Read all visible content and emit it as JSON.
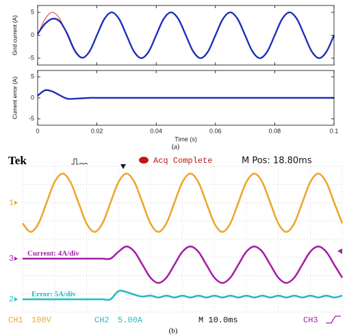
{
  "chart_data": [
    {
      "type": "line",
      "ylabel": "Grid current (A)",
      "x": [
        0,
        0.0025,
        0.005,
        0.0075,
        0.01,
        0.0125,
        0.015,
        0.0175,
        0.02,
        0.0225,
        0.025,
        0.0275,
        0.03,
        0.0325,
        0.035,
        0.0375,
        0.04,
        0.0425,
        0.045,
        0.0475,
        0.05,
        0.0525,
        0.055,
        0.0575,
        0.06,
        0.0625,
        0.065,
        0.0675,
        0.07,
        0.0725,
        0.075,
        0.0775,
        0.08,
        0.0825,
        0.085,
        0.0875,
        0.09,
        0.0925,
        0.095,
        0.0975,
        0.1
      ],
      "xlim": [
        0,
        0.1
      ],
      "xticks": [
        0,
        0.02,
        0.04,
        0.06,
        0.08,
        0.1
      ],
      "xticklabels": false,
      "ylim": [
        -6.5,
        6.5
      ],
      "yticks": [
        -5,
        0,
        5
      ],
      "series": [
        {
          "color": "#e03030",
          "width": 1,
          "values": [
            0,
            3.54,
            5,
            3.54,
            0,
            -3.54,
            -5,
            -3.54,
            0,
            3.54,
            5,
            3.54,
            0,
            -3.54,
            -5,
            -3.54,
            0,
            3.54,
            5,
            3.54,
            0,
            -3.54,
            -5,
            -3.54,
            0,
            3.54,
            5,
            3.54,
            0,
            -3.54,
            -5,
            -3.54,
            0,
            3.54,
            5,
            3.54,
            0,
            -3.54,
            -5,
            -3.54,
            0
          ]
        },
        {
          "color": "#1c2fb8",
          "width": 2.4,
          "values": [
            0.3,
            2.5,
            3.6,
            3.0,
            0.3,
            -3.3,
            -4.9,
            -3.54,
            0,
            3.54,
            5,
            3.54,
            0,
            -3.54,
            -5,
            -3.54,
            0,
            3.54,
            5,
            3.54,
            0,
            -3.54,
            -5,
            -3.54,
            0,
            3.54,
            5,
            3.54,
            0,
            -3.54,
            -5,
            -3.54,
            0,
            3.54,
            5,
            3.54,
            0,
            -3.54,
            -5,
            -3.54,
            0
          ]
        }
      ]
    },
    {
      "type": "line",
      "ylabel": "Current error (A)",
      "xlabel": "Time (s)",
      "caption": "(a)",
      "x": [
        0,
        0.0025,
        0.005,
        0.0075,
        0.01,
        0.0125,
        0.015,
        0.0175,
        0.02,
        0.0225,
        0.025,
        0.0275,
        0.03,
        0.0325,
        0.035,
        0.0375,
        0.04,
        0.0425,
        0.045,
        0.0475,
        0.05,
        0.0525,
        0.055,
        0.0575,
        0.06,
        0.0625,
        0.065,
        0.0675,
        0.07,
        0.0725,
        0.075,
        0.0775,
        0.08,
        0.0825,
        0.085,
        0.0875,
        0.09,
        0.0925,
        0.095,
        0.0975,
        0.1
      ],
      "xlim": [
        0,
        0.1
      ],
      "xticks": [
        0,
        0.02,
        0.04,
        0.06,
        0.08,
        0.1
      ],
      "ylim": [
        -6.5,
        6.5
      ],
      "yticks": [
        -5,
        0,
        5
      ],
      "series": [
        {
          "color": "#1c2fb8",
          "width": 2.4,
          "values": [
            0.5,
            1.8,
            1.5,
            0.6,
            -0.2,
            -0.2,
            -0.1,
            0,
            0,
            0,
            0,
            0,
            0,
            0,
            0,
            0,
            0,
            0,
            0,
            0,
            0,
            0,
            0,
            0,
            0,
            0,
            0,
            0,
            0,
            0,
            0,
            0,
            0,
            0,
            0,
            0,
            0,
            0,
            0,
            0,
            0
          ]
        }
      ]
    },
    {
      "type": "scope",
      "header": {
        "brand": "Tek",
        "status": "Acq Complete",
        "position": "M Pos: 18.80ms"
      },
      "series": [
        {
          "marker": "1",
          "color": "#eea52c",
          "values": [
            0.87,
            0.4,
            0.87,
            2,
            3.13,
            3.6,
            3.13,
            2,
            0.87,
            0.4,
            0.87,
            2,
            3.13,
            3.6,
            3.13,
            2,
            0.87,
            0.4,
            0.87,
            2,
            3.13,
            3.6,
            3.13,
            2,
            0.87,
            0.4,
            0.87,
            2,
            3.13,
            3.6,
            3.13,
            2,
            0.87,
            0.4,
            0.87,
            2,
            3.13,
            3.6,
            3.13,
            2,
            0.87
          ]
        },
        {
          "marker": "3",
          "label": "Current: 4A/div",
          "color": "#a41fa8",
          "values": [
            -1.07,
            -1.07,
            -1.07,
            -1.07,
            -1.07,
            -1.07,
            -1.07,
            -1.07,
            -1.07,
            -1.07,
            -1.07,
            -1.07,
            -0.69,
            -0.4,
            -0.69,
            -1.4,
            -2.11,
            -2.4,
            -2.11,
            -1.4,
            -0.69,
            -0.4,
            -0.69,
            -1.4,
            -2.11,
            -2.4,
            -2.11,
            -1.4,
            -0.69,
            -0.4,
            -0.69,
            -1.4,
            -2.11,
            -2.4,
            -2.11,
            -1.4,
            -0.69,
            -0.4,
            -0.69,
            -1.4,
            -2.11
          ]
        },
        {
          "marker": "2",
          "label": "Error: 5A/div",
          "color": "#22bcc0",
          "values": [
            -3.3,
            -3.3,
            -3.3,
            -3.3,
            -3.3,
            -3.3,
            -3.3,
            -3.3,
            -3.3,
            -3.3,
            -3.3,
            -3.3,
            -2.85,
            -2.9,
            -3.05,
            -3.15,
            -3.1,
            -3.2,
            -3.1,
            -3.2,
            -3.1,
            -3.2,
            -3.1,
            -3.2,
            -3.1,
            -3.2,
            -3.1,
            -3.2,
            -3.1,
            -3.2,
            -3.1,
            -3.2,
            -3.1,
            -3.2,
            -3.1,
            -3.2,
            -3.1,
            -3.2,
            -3.1,
            -3.2,
            -3.1
          ]
        }
      ],
      "footer": {
        "ch1": "CH1",
        "ch1_scale": "100V",
        "ch2": "CH2",
        "ch2_scale": "5.00A",
        "timebase": "M 10.0ms",
        "ch3": "CH3"
      },
      "caption": "(b)"
    }
  ]
}
